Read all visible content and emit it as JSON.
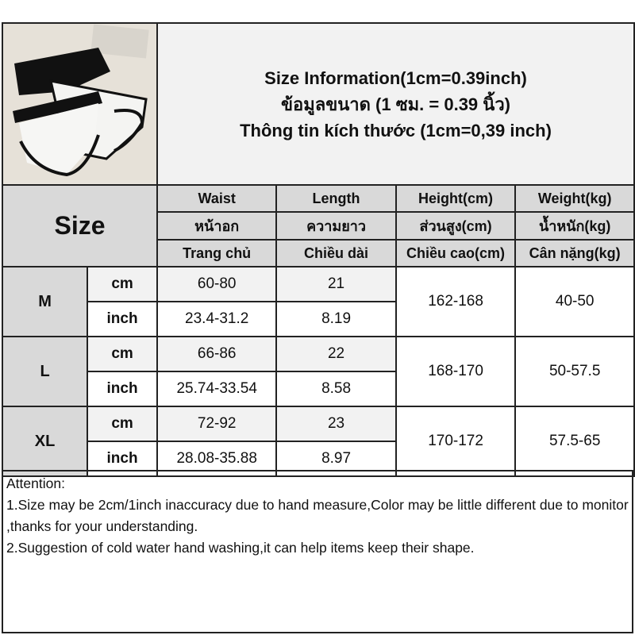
{
  "title": {
    "line1": "Size Information(1cm=0.39inch)",
    "line2": "ข้อมูลขนาด (1 ซม. = 0.39 นิ้ว)",
    "line3": "Thông tin kích thước (1cm=0,39 inch)"
  },
  "size_label": "Size",
  "columns": [
    {
      "en": "Waist",
      "th": "หน้าอก",
      "vi": "Trang chủ"
    },
    {
      "en": "Length",
      "th": "ความยาว",
      "vi": "Chiều dài"
    },
    {
      "en": "Height(cm)",
      "th": "ส่วนสูง(cm)",
      "vi": "Chiều cao(cm)"
    },
    {
      "en": "Weight(kg)",
      "th": "น้ำหนัก(kg)",
      "vi": "Cân nặng(kg)"
    }
  ],
  "sizes": [
    {
      "size": "M",
      "cm_label": "cm",
      "inch_label": "inch",
      "waist_cm": "60-80",
      "length_cm": "21",
      "waist_inch": "23.4-31.2",
      "length_inch": "8.19",
      "height": "162-168",
      "weight": "40-50"
    },
    {
      "size": "L",
      "cm_label": "cm",
      "inch_label": "inch",
      "waist_cm": "66-86",
      "length_cm": "22",
      "waist_inch": "25.74-33.54",
      "length_inch": "8.58",
      "height": "168-170",
      "weight": "50-57.5"
    },
    {
      "size": "XL",
      "cm_label": "cm",
      "inch_label": "inch",
      "waist_cm": "72-92",
      "length_cm": "23",
      "waist_inch": "28.08-35.88",
      "length_inch": "8.97",
      "height": "170-172",
      "weight": "57.5-65"
    }
  ],
  "attention": {
    "heading": "Attention:",
    "line1": "1.Size may be 2cm/1inch inaccuracy due to hand measure,Color may be little different due to monitor ,thanks for your understanding.",
    "line2": "2.Suggestion of cold water hand washing,it can help items keep their shape."
  }
}
